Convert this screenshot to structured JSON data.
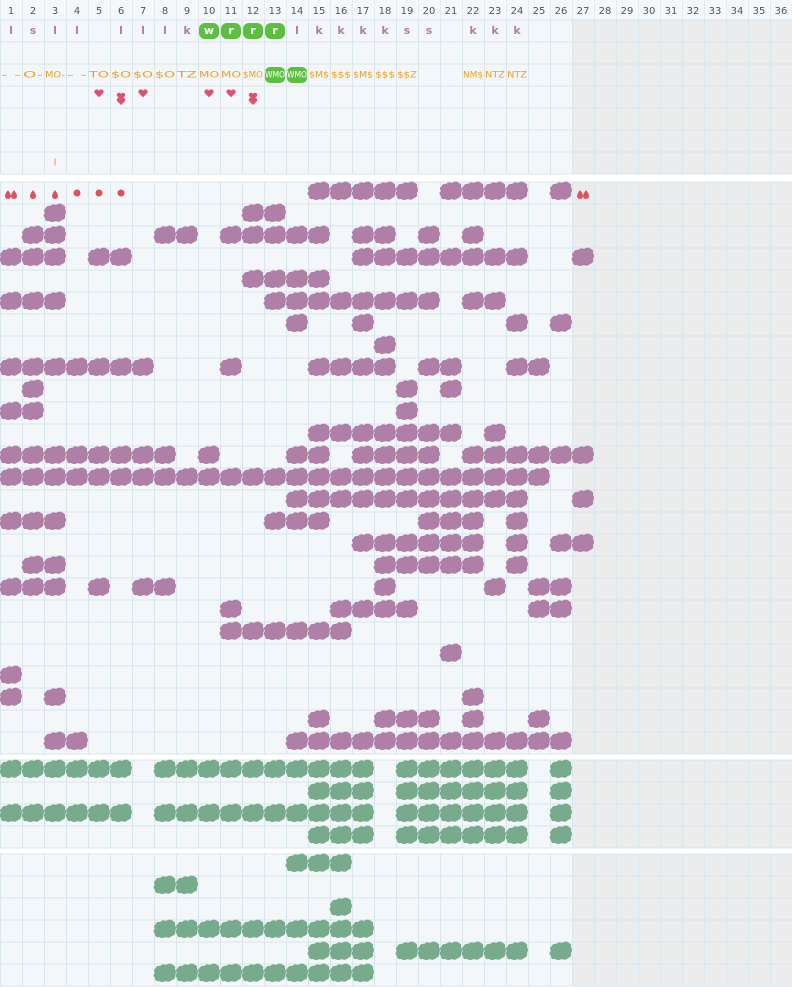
{
  "header": {
    "columns": [
      "1",
      "2",
      "3",
      "4",
      "5",
      "6",
      "7",
      "8",
      "9",
      "10",
      "11",
      "12",
      "13",
      "14",
      "15",
      "16",
      "17",
      "18",
      "19",
      "20",
      "21",
      "22",
      "23",
      "24",
      "25",
      "26",
      "27",
      "28",
      "29",
      "30",
      "31",
      "32",
      "33",
      "34",
      "35",
      "36"
    ]
  },
  "letter_row": [
    "l",
    "s",
    "l",
    "l",
    "l",
    "l",
    "l",
    "k",
    "w",
    "r",
    "r",
    "r",
    "l",
    "k",
    "k",
    "k",
    "k",
    "s",
    "s",
    "k",
    "k",
    "k"
  ],
  "code_row": [
    "- -",
    "O-",
    "MO-",
    "- -",
    "TO",
    "$O",
    "$O",
    "$O",
    "TZ",
    "MO",
    "MO",
    "$MO",
    "WMO",
    "WMO",
    "$M$",
    "$$$",
    "$M$",
    "$$$",
    "$$Z",
    "NM$",
    "NTZ",
    "NTZ"
  ],
  "note_row": [
    "l"
  ]
}
